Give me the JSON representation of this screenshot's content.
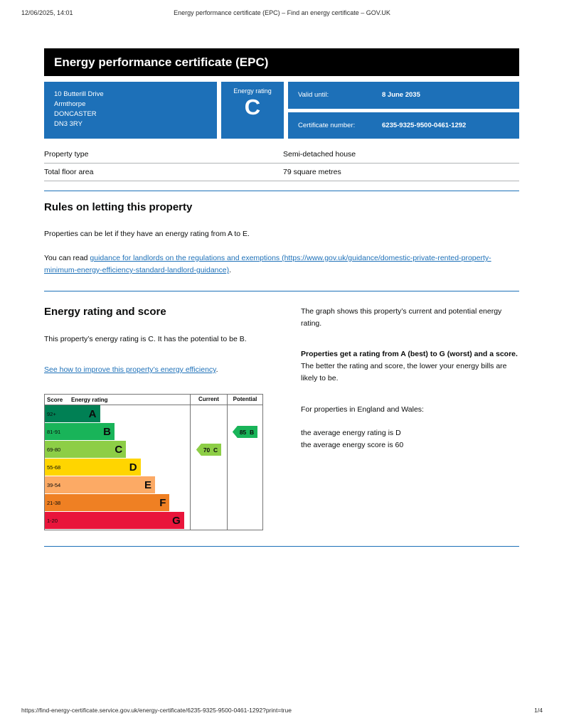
{
  "colors": {
    "govuk_blue": "#1d70b8",
    "link": "#1d70b8",
    "text": "#0b0c0c",
    "banner_bg": "#000000"
  },
  "print_header": {
    "datetime": "12/06/2025, 14:01",
    "title": "Energy performance certificate (EPC) – Find an energy certificate – GOV.UK"
  },
  "banner": {
    "title": "Energy performance certificate (EPC)"
  },
  "summary": {
    "address_lines": [
      "10 Butterill Drive",
      "Armthorpe",
      "DONCASTER",
      "DN3 3RY"
    ],
    "energy_rating_label": "Energy rating",
    "energy_rating_value": "C",
    "valid_until_label": "Valid until:",
    "valid_until_value": "8 June 2035",
    "certificate_number_label": "Certificate number:",
    "certificate_number_value": "6235-9325-9500-0461-1292"
  },
  "property_details": {
    "rows": [
      {
        "label": "Property type",
        "value": "Semi-detached house"
      },
      {
        "label": "Total floor area",
        "value": "79 square metres"
      }
    ]
  },
  "rules_section": {
    "heading": "Rules on letting this property",
    "paragraph1": "Properties can be let if they have an energy rating from A to E.",
    "paragraph2_prefix": "You can read ",
    "landlord_guidance_link": "guidance for landlords on the regulations and exemptions (https://www.gov.uk/guidance/domestic-private-rented-property-minimum-energy-efficiency-standard-landlord-guidance)",
    "paragraph2_suffix": "."
  },
  "rating_section": {
    "heading": "Energy rating and score",
    "paragraph1": "This property’s energy rating is C. It has the potential to be B.",
    "improve_link": "See how to improve this property’s energy efficiency",
    "improve_link_suffix": ".",
    "graph_intro": "The graph shows this property’s current and potential energy rating.",
    "ratings_explainer_bold": "Properties get a rating from A (best) to G (worst) and a score.",
    "ratings_explainer_rest": " The better the rating and score, the lower your energy bills are likely to be.",
    "england_wales_intro": "For properties in England and Wales:",
    "average_rating_line": "the average energy rating is D",
    "average_score_line": "the average energy score is 60"
  },
  "chart_data": {
    "type": "epc-bands",
    "title": "Energy rating and score graph",
    "headers": {
      "score": "Score",
      "rating": "Energy rating",
      "current": "Current",
      "potential": "Potential"
    },
    "bands": [
      {
        "score": "92+",
        "letter": "A",
        "color": "#008054",
        "width_pct": 38
      },
      {
        "score": "81-91",
        "letter": "B",
        "color": "#19b459",
        "width_pct": 48
      },
      {
        "score": "69-80",
        "letter": "C",
        "color": "#8dce46",
        "width_pct": 56
      },
      {
        "score": "55-68",
        "letter": "D",
        "color": "#ffd500",
        "width_pct": 66
      },
      {
        "score": "39-54",
        "letter": "E",
        "color": "#fcaa65",
        "width_pct": 76
      },
      {
        "score": "21-38",
        "letter": "F",
        "color": "#ef8023",
        "width_pct": 86
      },
      {
        "score": "1-20",
        "letter": "G",
        "color": "#e9153b",
        "width_pct": 96
      }
    ],
    "current": {
      "score": 70,
      "letter": "C",
      "color": "#8dce46",
      "band_index": 2
    },
    "potential": {
      "score": 85,
      "letter": "B",
      "color": "#19b459",
      "band_index": 1
    }
  },
  "print_footer": {
    "url": "https://find-energy-certificate.service.gov.uk/energy-certificate/6235-9325-9500-0461-1292?print=true",
    "page": "1/4"
  }
}
